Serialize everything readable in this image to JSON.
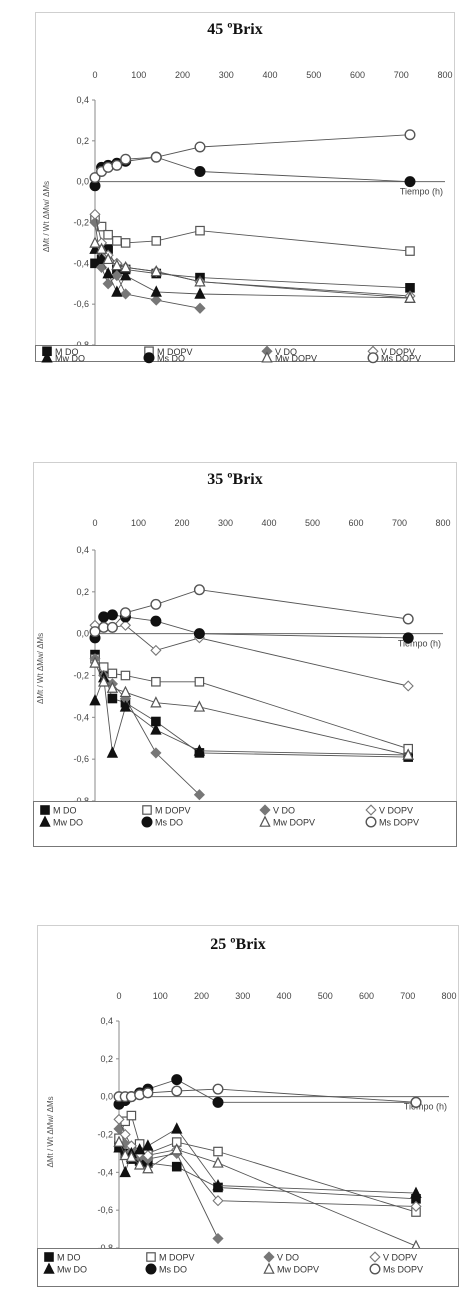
{
  "chart_data": [
    {
      "type": "line",
      "title": "45 ºBrix",
      "xlabel": "Tiempo (h)",
      "ylabel": "ΔMt / Wt ΔMw/ ΔMs",
      "x_ticks": [
        "0",
        "100",
        "200",
        "300",
        "400",
        "500",
        "600",
        "700",
        "800"
      ],
      "y_ticks": [
        "0,4",
        "0,2",
        "0,0",
        "-0,2",
        "-0,4",
        "-0,6",
        "-0,8"
      ],
      "xlim": [
        0,
        800
      ],
      "ylim": [
        -0.8,
        0.4
      ],
      "grid": false,
      "legend_position": "bottom",
      "series": [
        {
          "name": "M DO",
          "marker": "square-filled",
          "x": [
            0,
            15,
            30,
            50,
            70,
            140,
            240,
            720
          ],
          "y": [
            -0.4,
            -0.38,
            -0.33,
            -0.43,
            -0.43,
            -0.45,
            -0.47,
            -0.52
          ]
        },
        {
          "name": "M DOPV",
          "marker": "square-open",
          "x": [
            0,
            15,
            30,
            50,
            70,
            140,
            240,
            720
          ],
          "y": [
            -0.18,
            -0.22,
            -0.26,
            -0.29,
            -0.3,
            -0.29,
            -0.24,
            -0.34
          ]
        },
        {
          "name": "V DO",
          "marker": "diamond-filled",
          "x": [
            0,
            15,
            30,
            50,
            70,
            140,
            240
          ],
          "y": [
            -0.2,
            -0.42,
            -0.5,
            -0.46,
            -0.55,
            -0.58,
            -0.62
          ]
        },
        {
          "name": "V DOPV",
          "marker": "diamond-open",
          "x": [
            0,
            15,
            30,
            50,
            70,
            140,
            240,
            720
          ],
          "y": [
            -0.16,
            -0.3,
            -0.36,
            -0.4,
            -0.42,
            -0.44,
            -0.49,
            -0.56
          ]
        },
        {
          "name": "Mw DO",
          "marker": "triangle-filled",
          "x": [
            0,
            15,
            30,
            50,
            70,
            140,
            240,
            720
          ],
          "y": [
            -0.33,
            -0.38,
            -0.45,
            -0.54,
            -0.46,
            -0.54,
            -0.55,
            -0.57
          ]
        },
        {
          "name": "Ms DO",
          "marker": "circle-filled",
          "x": [
            0,
            15,
            30,
            50,
            70,
            140,
            240,
            720
          ],
          "y": [
            -0.02,
            0.07,
            0.08,
            0.09,
            0.1,
            0.12,
            0.05,
            0.0
          ]
        },
        {
          "name": "Mw DOPV",
          "marker": "triangle-open",
          "x": [
            0,
            15,
            30,
            50,
            70,
            140,
            240,
            720
          ],
          "y": [
            -0.3,
            -0.33,
            -0.38,
            -0.41,
            -0.42,
            -0.44,
            -0.49,
            -0.57
          ]
        },
        {
          "name": "Ms DOPV",
          "marker": "circle-open",
          "x": [
            0,
            15,
            30,
            50,
            70,
            140,
            240,
            720
          ],
          "y": [
            0.02,
            0.05,
            0.07,
            0.08,
            0.11,
            0.12,
            0.17,
            0.23
          ]
        }
      ]
    },
    {
      "type": "line",
      "title": "35 ºBrix",
      "xlabel": "Tiempo (h)",
      "ylabel": "ΔMt / Wt ΔMw/ ΔMs",
      "x_ticks": [
        "0",
        "100",
        "200",
        "300",
        "400",
        "500",
        "600",
        "700",
        "800"
      ],
      "y_ticks": [
        "0,4",
        "0,2",
        "0,0",
        "-0,2",
        "-0,4",
        "-0,6",
        "-0,8"
      ],
      "xlim": [
        0,
        800
      ],
      "ylim": [
        -0.8,
        0.4
      ],
      "grid": false,
      "legend_position": "bottom",
      "series": [
        {
          "name": "M DO",
          "marker": "square-filled",
          "x": [
            0,
            20,
            40,
            70,
            140,
            240,
            720
          ],
          "y": [
            -0.1,
            -0.18,
            -0.31,
            -0.33,
            -0.42,
            -0.57,
            -0.59
          ]
        },
        {
          "name": "M DOPV",
          "marker": "square-open",
          "x": [
            0,
            20,
            40,
            70,
            140,
            240,
            720
          ],
          "y": [
            -0.12,
            -0.16,
            -0.19,
            -0.2,
            -0.23,
            -0.23,
            -0.55
          ]
        },
        {
          "name": "V DO",
          "marker": "diamond-filled",
          "x": [
            0,
            20,
            40,
            70,
            140,
            240
          ],
          "y": [
            -0.12,
            -0.2,
            -0.24,
            -0.31,
            -0.57,
            -0.77
          ]
        },
        {
          "name": "V DOPV",
          "marker": "diamond-open",
          "x": [
            0,
            20,
            40,
            70,
            140,
            240,
            720
          ],
          "y": [
            0.04,
            0.04,
            0.03,
            0.04,
            -0.08,
            -0.02,
            -0.25
          ]
        },
        {
          "name": "Mw DO",
          "marker": "triangle-filled",
          "x": [
            0,
            20,
            40,
            70,
            140,
            240,
            720
          ],
          "y": [
            -0.32,
            -0.21,
            -0.57,
            -0.35,
            -0.46,
            -0.56,
            -0.58
          ]
        },
        {
          "name": "Ms DO",
          "marker": "circle-filled",
          "x": [
            0,
            20,
            40,
            70,
            140,
            240,
            720
          ],
          "y": [
            -0.02,
            0.08,
            0.09,
            0.08,
            0.06,
            0.0,
            -0.02
          ]
        },
        {
          "name": "Mw DOPV",
          "marker": "triangle-open",
          "x": [
            0,
            20,
            40,
            70,
            140,
            240,
            720
          ],
          "y": [
            -0.14,
            -0.23,
            -0.26,
            -0.28,
            -0.33,
            -0.35,
            -0.58
          ]
        },
        {
          "name": "Ms DOPV",
          "marker": "circle-open",
          "x": [
            0,
            20,
            40,
            70,
            140,
            240,
            720
          ],
          "y": [
            0.01,
            0.03,
            0.03,
            0.1,
            0.14,
            0.21,
            0.07
          ]
        }
      ]
    },
    {
      "type": "line",
      "title": "25 ºBrix",
      "xlabel": "Tiempo (h)",
      "ylabel": "ΔMt / Wt ΔMw/ ΔMs",
      "x_ticks": [
        "0",
        "100",
        "200",
        "300",
        "400",
        "500",
        "600",
        "700",
        "800"
      ],
      "y_ticks": [
        "0,4",
        "0,2",
        "0,0",
        "-0,2",
        "-0,4",
        "-0,6",
        "-0,8"
      ],
      "xlim": [
        0,
        800
      ],
      "ylim": [
        -0.8,
        0.4
      ],
      "grid": false,
      "legend_position": "bottom",
      "series": [
        {
          "name": "M DO",
          "marker": "square-filled",
          "x": [
            0,
            15,
            30,
            50,
            70,
            140,
            240,
            720
          ],
          "y": [
            -0.26,
            -0.3,
            -0.33,
            -0.34,
            -0.35,
            -0.37,
            -0.48,
            -0.54
          ]
        },
        {
          "name": "M DOPV",
          "marker": "square-open",
          "x": [
            0,
            15,
            30,
            50,
            70,
            140,
            240,
            720
          ],
          "y": [
            -0.22,
            -0.13,
            -0.1,
            -0.25,
            -0.3,
            -0.24,
            -0.29,
            -0.61
          ]
        },
        {
          "name": "V DO",
          "marker": "diamond-filled",
          "x": [
            0,
            15,
            30,
            50,
            70,
            140,
            240
          ],
          "y": [
            -0.17,
            -0.25,
            -0.29,
            -0.32,
            -0.33,
            -0.3,
            -0.75
          ]
        },
        {
          "name": "V DOPV",
          "marker": "diamond-open",
          "x": [
            0,
            15,
            30,
            50,
            70,
            140,
            240,
            720
          ],
          "y": [
            -0.12,
            -0.2,
            -0.26,
            -0.3,
            -0.31,
            -0.28,
            -0.55,
            -0.58
          ]
        },
        {
          "name": "Mw DO",
          "marker": "triangle-filled",
          "x": [
            0,
            15,
            30,
            50,
            70,
            140,
            240,
            720
          ],
          "y": [
            -0.27,
            -0.4,
            -0.3,
            -0.28,
            -0.26,
            -0.17,
            -0.47,
            -0.51
          ]
        },
        {
          "name": "Ms DO",
          "marker": "circle-filled",
          "x": [
            0,
            15,
            30,
            50,
            70,
            140,
            240,
            720
          ],
          "y": [
            -0.04,
            -0.02,
            0.0,
            0.02,
            0.04,
            0.09,
            -0.03,
            -0.03
          ]
        },
        {
          "name": "Mw DOPV",
          "marker": "triangle-open",
          "x": [
            0,
            15,
            30,
            50,
            70,
            140,
            240,
            720
          ],
          "y": [
            -0.24,
            -0.31,
            -0.32,
            -0.36,
            -0.38,
            -0.28,
            -0.35,
            -0.79
          ]
        },
        {
          "name": "Ms DOPV",
          "marker": "circle-open",
          "x": [
            0,
            15,
            30,
            50,
            70,
            140,
            240,
            720
          ],
          "y": [
            0.0,
            0.0,
            0.0,
            0.01,
            0.02,
            0.03,
            0.04,
            -0.03
          ]
        }
      ]
    }
  ]
}
